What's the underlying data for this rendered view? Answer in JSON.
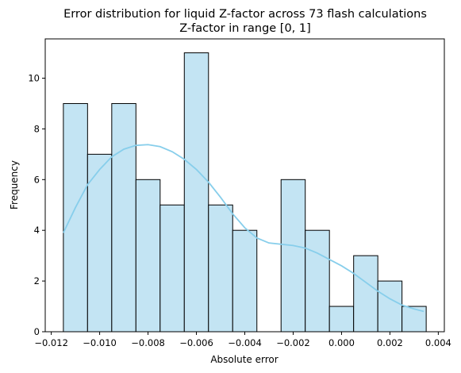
{
  "chart_data": {
    "type": "bar",
    "title": "Error distribution for liquid Z-factor  across 73 flash calculations",
    "subtitle": "Z-factor in range [0, 1]",
    "xlabel": "Absolute error",
    "ylabel": "Frequency",
    "xlim": [
      -0.01225,
      0.00425
    ],
    "ylim": [
      0,
      11.55
    ],
    "xticks": [
      -0.012,
      -0.01,
      -0.008,
      -0.006,
      -0.004,
      -0.002,
      0.0,
      0.002,
      0.004
    ],
    "xtick_labels": [
      "−0.012",
      "−0.010",
      "−0.008",
      "−0.006",
      "−0.004",
      "−0.002",
      "0.000",
      "0.002",
      "0.004"
    ],
    "yticks": [
      0,
      2,
      4,
      6,
      8,
      10
    ],
    "ytick_labels": [
      "0",
      "2",
      "4",
      "6",
      "8",
      "10"
    ],
    "bins": {
      "start": -0.0115,
      "width": 0.001,
      "counts": [
        9,
        7,
        9,
        6,
        5,
        11,
        5,
        4,
        0,
        6,
        4,
        1,
        3,
        2,
        1
      ]
    },
    "kde": {
      "x": [
        -0.0115,
        -0.011,
        -0.0105,
        -0.01,
        -0.0095,
        -0.009,
        -0.0085,
        -0.008,
        -0.0075,
        -0.007,
        -0.0065,
        -0.006,
        -0.0055,
        -0.005,
        -0.0045,
        -0.004,
        -0.0035,
        -0.003,
        -0.0025,
        -0.002,
        -0.0015,
        -0.001,
        -0.0005,
        0.0,
        0.0005,
        0.001,
        0.0015,
        0.002,
        0.0025,
        0.003,
        0.0034
      ],
      "y": [
        3.9,
        4.9,
        5.8,
        6.4,
        6.9,
        7.2,
        7.35,
        7.38,
        7.3,
        7.1,
        6.8,
        6.4,
        5.9,
        5.3,
        4.65,
        4.1,
        3.7,
        3.5,
        3.45,
        3.4,
        3.3,
        3.1,
        2.85,
        2.6,
        2.3,
        1.95,
        1.6,
        1.3,
        1.05,
        0.9,
        0.8
      ]
    },
    "colors": {
      "bar_fill": "#c3e4f3",
      "bar_edge": "#000000",
      "kde_line": "#87ceeb"
    }
  }
}
